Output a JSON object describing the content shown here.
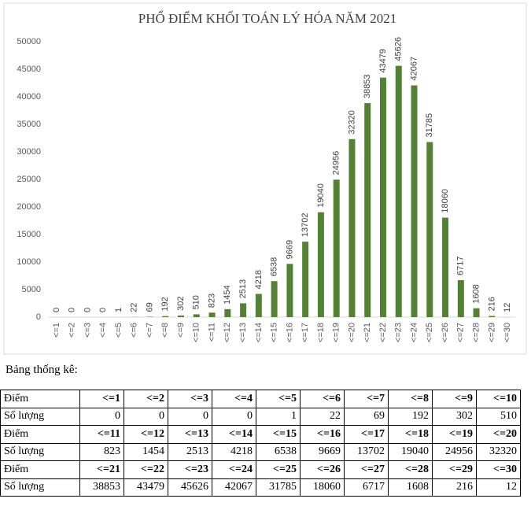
{
  "chart_data": {
    "type": "bar",
    "title": "PHỔ ĐIỂM KHỐI TOÁN LÝ HÓA NĂM 2021",
    "categories": [
      "<=1",
      "<=2",
      "<=3",
      "<=4",
      "<=5",
      "<=6",
      "<=7",
      "<=8",
      "<=9",
      "<=10",
      "<=11",
      "<=12",
      "<=13",
      "<=14",
      "<=15",
      "<=16",
      "<=17",
      "<=18",
      "<=19",
      "<=20",
      "<=21",
      "<=22",
      "<=23",
      "<=24",
      "<=25",
      "<=26",
      "<=27",
      "<=28",
      "<=29",
      "<=30"
    ],
    "values": [
      0,
      0,
      0,
      0,
      1,
      22,
      69,
      192,
      302,
      510,
      823,
      1454,
      2513,
      4218,
      6538,
      9669,
      13702,
      19040,
      24956,
      32320,
      38853,
      43479,
      45626,
      42067,
      31785,
      18060,
      6717,
      1608,
      216,
      12
    ],
    "color": "#548235",
    "ylim": [
      0,
      50000
    ],
    "yticks": [
      0,
      5000,
      10000,
      15000,
      20000,
      25000,
      30000,
      35000,
      40000,
      45000,
      50000
    ]
  },
  "table": {
    "caption": "Bảng thống kê:",
    "row_labels": [
      "Điểm",
      "Số lượng"
    ]
  }
}
